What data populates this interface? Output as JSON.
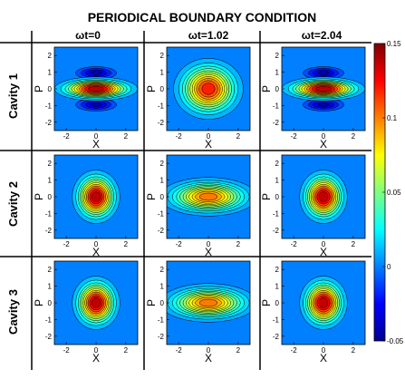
{
  "figure": {
    "title": "PERIODICAL BOUNDARY CONDITION",
    "column_titles": [
      "ωt=0",
      "ωt=1.02",
      "ωt=2.04"
    ],
    "row_titles": [
      "Cavity 1",
      "Cavity 2",
      "Cavity 3"
    ],
    "xlabel": "X",
    "ylabel": "P",
    "x_ticks": [
      "-2",
      "0",
      "2"
    ],
    "y_ticks": [
      "2",
      "1",
      "0",
      "-1",
      "-2"
    ],
    "colorbar_ticks": [
      "0.15",
      "0.1",
      "0.05",
      "0",
      "-0.05"
    ]
  },
  "chart_data": {
    "type": "heatmap",
    "subtype": "filled-contour grid (3 x 3 panels)",
    "title": "PERIODICAL BOUNDARY CONDITION",
    "xlabel": "X",
    "ylabel": "P",
    "xlim": [
      -2.8,
      2.8
    ],
    "ylim": [
      -2.5,
      2.5
    ],
    "colorbar": {
      "min": -0.05,
      "max": 0.15,
      "ticks": [
        0.15,
        0.1,
        0.05,
        0,
        -0.05
      ],
      "colormap": "jet"
    },
    "grid": false,
    "panels": [
      {
        "row": "Cavity 1",
        "col": "ωt=0",
        "shape": "squeezed in P (elongated along X) with negative lobes above and below",
        "peak": 0.15,
        "sx": 1.25,
        "sp": 0.32,
        "neg_lobes": true
      },
      {
        "row": "Cavity 1",
        "col": "ωt=1.02",
        "shape": "round-ish wide Gaussian",
        "peak": 0.13,
        "sx": 1.05,
        "sp": 0.82,
        "neg_lobes": false
      },
      {
        "row": "Cavity 1",
        "col": "ωt=2.04",
        "shape": "squeezed in P with negative lobes above and below",
        "peak": 0.15,
        "sx": 1.25,
        "sp": 0.32,
        "neg_lobes": true
      },
      {
        "row": "Cavity 2",
        "col": "ωt=0",
        "shape": "circular Gaussian",
        "peak": 0.15,
        "sx": 0.72,
        "sp": 0.72,
        "neg_lobes": false
      },
      {
        "row": "Cavity 2",
        "col": "ωt=1.02",
        "shape": "elongated along X (squeezed in P)",
        "peak": 0.11,
        "sx": 1.45,
        "sp": 0.52,
        "neg_lobes": false
      },
      {
        "row": "Cavity 2",
        "col": "ωt=2.04",
        "shape": "circular Gaussian",
        "peak": 0.15,
        "sx": 0.72,
        "sp": 0.72,
        "neg_lobes": false
      },
      {
        "row": "Cavity 3",
        "col": "ωt=0",
        "shape": "circular Gaussian",
        "peak": 0.15,
        "sx": 0.72,
        "sp": 0.72,
        "neg_lobes": false
      },
      {
        "row": "Cavity 3",
        "col": "ωt=1.02",
        "shape": "elongated along X (squeezed in P)",
        "peak": 0.11,
        "sx": 1.45,
        "sp": 0.52,
        "neg_lobes": false
      },
      {
        "row": "Cavity 3",
        "col": "ωt=2.04",
        "shape": "circular Gaussian",
        "peak": 0.15,
        "sx": 0.72,
        "sp": 0.72,
        "neg_lobes": false
      }
    ]
  }
}
